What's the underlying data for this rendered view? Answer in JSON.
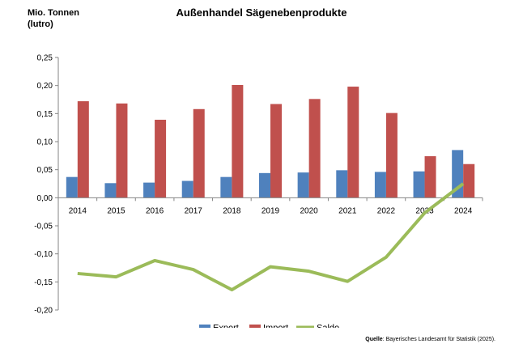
{
  "chart_data": {
    "type": "bar",
    "title": "Außenhandel Sägenebenprodukte",
    "unit_line1": "Mio. Tonnen",
    "unit_line2": "(lutro)",
    "categories": [
      "2014",
      "2015",
      "2016",
      "2017",
      "2018",
      "2019",
      "2020",
      "2021",
      "2022",
      "2023",
      "2024"
    ],
    "series": [
      {
        "name": "Export",
        "kind": "bar",
        "color": "#4F81BD",
        "values": [
          0.037,
          0.026,
          0.027,
          0.03,
          0.037,
          0.044,
          0.045,
          0.049,
          0.046,
          0.047,
          0.085
        ]
      },
      {
        "name": "Import",
        "kind": "bar",
        "color": "#C0504D",
        "values": [
          0.172,
          0.168,
          0.139,
          0.158,
          0.201,
          0.167,
          0.176,
          0.198,
          0.151,
          0.074,
          0.06
        ]
      },
      {
        "name": "Saldo",
        "kind": "line",
        "color": "#9BBB59",
        "values": [
          -0.135,
          -0.141,
          -0.112,
          -0.128,
          -0.164,
          -0.123,
          -0.131,
          -0.149,
          -0.106,
          -0.027,
          0.025
        ]
      }
    ],
    "ylim": [
      -0.2,
      0.25
    ],
    "yticks": [
      "0,25",
      "0,20",
      "0,15",
      "0,10",
      "0,05",
      "0,00",
      "-0,05",
      "-0,10",
      "-0,15",
      "-0,20"
    ],
    "ytick_values": [
      0.25,
      0.2,
      0.15,
      0.1,
      0.05,
      0.0,
      -0.05,
      -0.1,
      -0.15,
      -0.2
    ],
    "grid": false,
    "legend": "bottom"
  },
  "source": {
    "label": "Quelle",
    "text": ": Bayerisches Landesamt für Statistik (2025)."
  }
}
